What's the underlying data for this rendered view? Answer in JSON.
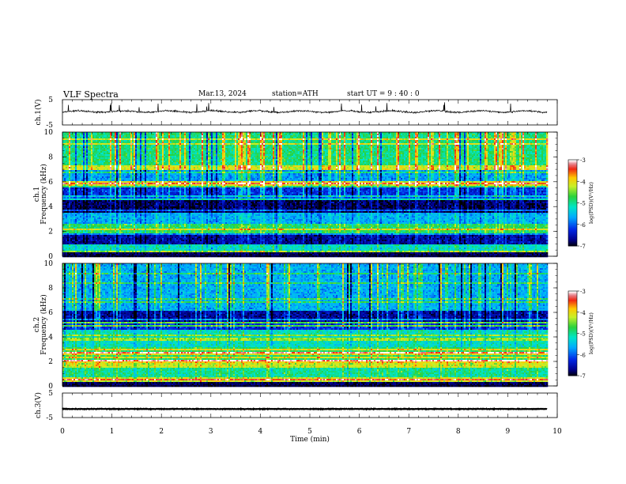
{
  "header": {
    "title": "VLF Spectra",
    "date": "Mar.13, 2024",
    "station": "station=ATH",
    "start": "start UT =  9 : 40 : 0"
  },
  "chart_data": [
    {
      "type": "line",
      "panel": "ch1-waveform",
      "ylabel": "ch.1(V)",
      "ylim": [
        -5,
        5
      ],
      "yticks": [
        "5",
        "-5"
      ],
      "x_range_min": [
        0,
        9.8
      ],
      "level_v": 0.3,
      "color": "#000000"
    },
    {
      "type": "heatmap",
      "panel": "ch1-spectrogram",
      "ylabel_top": "ch.1",
      "ylabel": "Frequency (kHz)",
      "ylim": [
        0,
        10
      ],
      "yticks": [
        "0",
        "2",
        "4",
        "6",
        "8",
        "10"
      ],
      "x_range_min": [
        0,
        9.8
      ],
      "colorbar": {
        "label": "log(PSD)(V²/Hz)",
        "range": [
          -7,
          -3
        ],
        "ticks": [
          "-3",
          "-4",
          "-5",
          "-6",
          "-7"
        ]
      },
      "bands": [
        {
          "f": [
            0,
            0.3
          ],
          "v": -7.0
        },
        {
          "f": [
            0.3,
            1.0
          ],
          "v": -5.2
        },
        {
          "f": [
            1.0,
            1.9
          ],
          "v": -6.6
        },
        {
          "f": [
            1.9,
            2.6
          ],
          "v": -4.8
        },
        {
          "f": [
            2.6,
            3.6
          ],
          "v": -5.6
        },
        {
          "f": [
            3.6,
            4.9
          ],
          "v": -6.8
        },
        {
          "f": [
            4.9,
            5.6
          ],
          "v": -6.2
        },
        {
          "f": [
            5.6,
            7.0
          ],
          "v": -5.7
        },
        {
          "f": [
            7.0,
            10.0
          ],
          "v": -4.9
        }
      ]
    },
    {
      "type": "heatmap",
      "panel": "ch2-spectrogram",
      "ylabel_top": "ch.2",
      "ylabel": "Frequency (kHz)",
      "ylim": [
        0,
        10
      ],
      "yticks": [
        "0",
        "2",
        "4",
        "6",
        "8",
        "10"
      ],
      "x_range_min": [
        0,
        9.8
      ],
      "colorbar": {
        "label": "log(PSD)(V²/Hz)",
        "range": [
          -7,
          -3
        ],
        "ticks": [
          "-3",
          "-4",
          "-5",
          "-6",
          "-7"
        ]
      },
      "bands": [
        {
          "f": [
            0,
            0.3
          ],
          "v": -7.0
        },
        {
          "f": [
            0.3,
            1.9
          ],
          "v": -5.0
        },
        {
          "f": [
            1.9,
            2.2
          ],
          "v": -3.9
        },
        {
          "f": [
            2.2,
            3.2
          ],
          "v": -4.8
        },
        {
          "f": [
            3.2,
            4.7
          ],
          "v": -5.2
        },
        {
          "f": [
            4.7,
            5.3
          ],
          "v": -6.2
        },
        {
          "f": [
            5.3,
            6.2
          ],
          "v": -6.6
        },
        {
          "f": [
            6.2,
            10.0
          ],
          "v": -5.6
        }
      ]
    },
    {
      "type": "line",
      "panel": "ch3-waveform",
      "ylabel": "ch.3(V)",
      "ylim": [
        -5,
        5
      ],
      "yticks": [
        "5",
        "-5"
      ],
      "x_range_min": [
        0,
        9.8
      ],
      "level_v": -1.5,
      "color": "#000000"
    }
  ],
  "x_axis": {
    "label": "Time (min)",
    "ticks": [
      "0",
      "1",
      "2",
      "3",
      "4",
      "5",
      "6",
      "7",
      "8",
      "9",
      "10"
    ],
    "range": [
      0,
      10
    ]
  }
}
